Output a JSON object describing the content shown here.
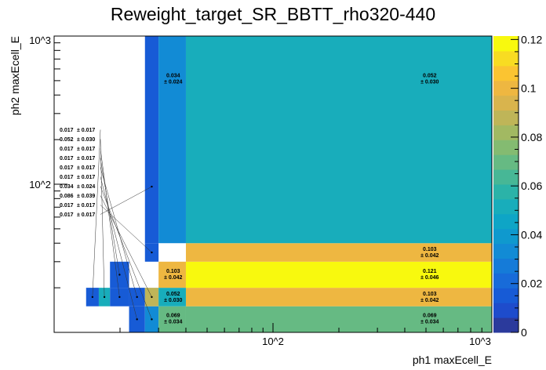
{
  "chart_data": {
    "type": "heatmap",
    "title": "Reweight_target_SR_BBTT_rho320-440",
    "xlabel": "ph1 maxEcell_E",
    "ylabel": "ph2 maxEcell_E",
    "xscale": "log",
    "yscale": "log",
    "xlim": [
      10,
      1000
    ],
    "ylim": [
      10,
      1000
    ],
    "x_tick_labels": [
      "10^2",
      "10^3"
    ],
    "y_tick_labels": [
      "10^2",
      "10^3"
    ],
    "zlim": [
      0,
      0.1214
    ],
    "z_tick_labels": [
      "0",
      "0.02",
      "0.04",
      "0.06",
      "0.08",
      "0.1",
      "0.12"
    ],
    "palette": [
      "#2b3a9c",
      "#1e4ccc",
      "#175bd6",
      "#186bd9",
      "#157bd8",
      "#128bd5",
      "#0f99ce",
      "#0ea5c6",
      "#18adbb",
      "#2bb3a8",
      "#47b796",
      "#66ba83",
      "#84bb71",
      "#a2b962",
      "#bfb558",
      "#d9b44d",
      "#eeb741",
      "#fbc431",
      "#f8dc22",
      "#f8f90e"
    ],
    "cells": [
      {
        "x0": 14,
        "x1": 16,
        "y0": 15,
        "y1": 20,
        "value": 0.017,
        "error": 0.017
      },
      {
        "x0": 16,
        "x1": 18,
        "y0": 15,
        "y1": 20,
        "value": 0.052,
        "error": 0.03
      },
      {
        "x0": 18,
        "x1": 22,
        "y0": 15,
        "y1": 20,
        "value": 0.017,
        "error": 0.017
      },
      {
        "x0": 18,
        "x1": 22,
        "y0": 20,
        "y1": 30,
        "value": 0.017,
        "error": 0.017
      },
      {
        "x0": 22,
        "x1": 26,
        "y0": 15,
        "y1": 20,
        "value": 0.017,
        "error": 0.017
      },
      {
        "x0": 22,
        "x1": 26,
        "y0": 10,
        "y1": 15,
        "value": 0.017,
        "error": 0.017
      },
      {
        "x0": 26,
        "x1": 30,
        "y0": 10,
        "y1": 15,
        "value": 0.034,
        "error": 0.024
      },
      {
        "x0": 26,
        "x1": 30,
        "y0": 15,
        "y1": 20,
        "value": 0.086,
        "error": 0.039
      },
      {
        "x0": 26,
        "x1": 30,
        "y0": 30,
        "y1": 40,
        "value": 0.017,
        "error": 0.017
      },
      {
        "x0": 26,
        "x1": 30,
        "y0": 40,
        "y1": 1000,
        "value": 0.017,
        "error": 0.017
      },
      {
        "x0": 30,
        "x1": 40,
        "y0": 10,
        "y1": 15,
        "value": 0.069,
        "error": 0.034
      },
      {
        "x0": 30,
        "x1": 40,
        "y0": 15,
        "y1": 20,
        "value": 0.052,
        "error": 0.03
      },
      {
        "x0": 30,
        "x1": 40,
        "y0": 20,
        "y1": 30,
        "value": 0.103,
        "error": 0.042
      },
      {
        "x0": 30,
        "x1": 40,
        "y0": 40,
        "y1": 1000,
        "value": 0.034,
        "error": 0.024
      },
      {
        "x0": 40,
        "x1": 1000,
        "y0": 10,
        "y1": 15,
        "value": 0.069,
        "error": 0.034
      },
      {
        "x0": 40,
        "x1": 1000,
        "y0": 15,
        "y1": 20,
        "value": 0.103,
        "error": 0.042
      },
      {
        "x0": 40,
        "x1": 1000,
        "y0": 20,
        "y1": 30,
        "value": 0.121,
        "error": 0.046
      },
      {
        "x0": 40,
        "x1": 1000,
        "y0": 30,
        "y1": 40,
        "value": 0.103,
        "error": 0.042
      },
      {
        "x0": 40,
        "x1": 1000,
        "y0": 40,
        "y1": 1000,
        "value": 0.052,
        "error": 0.03
      }
    ]
  }
}
